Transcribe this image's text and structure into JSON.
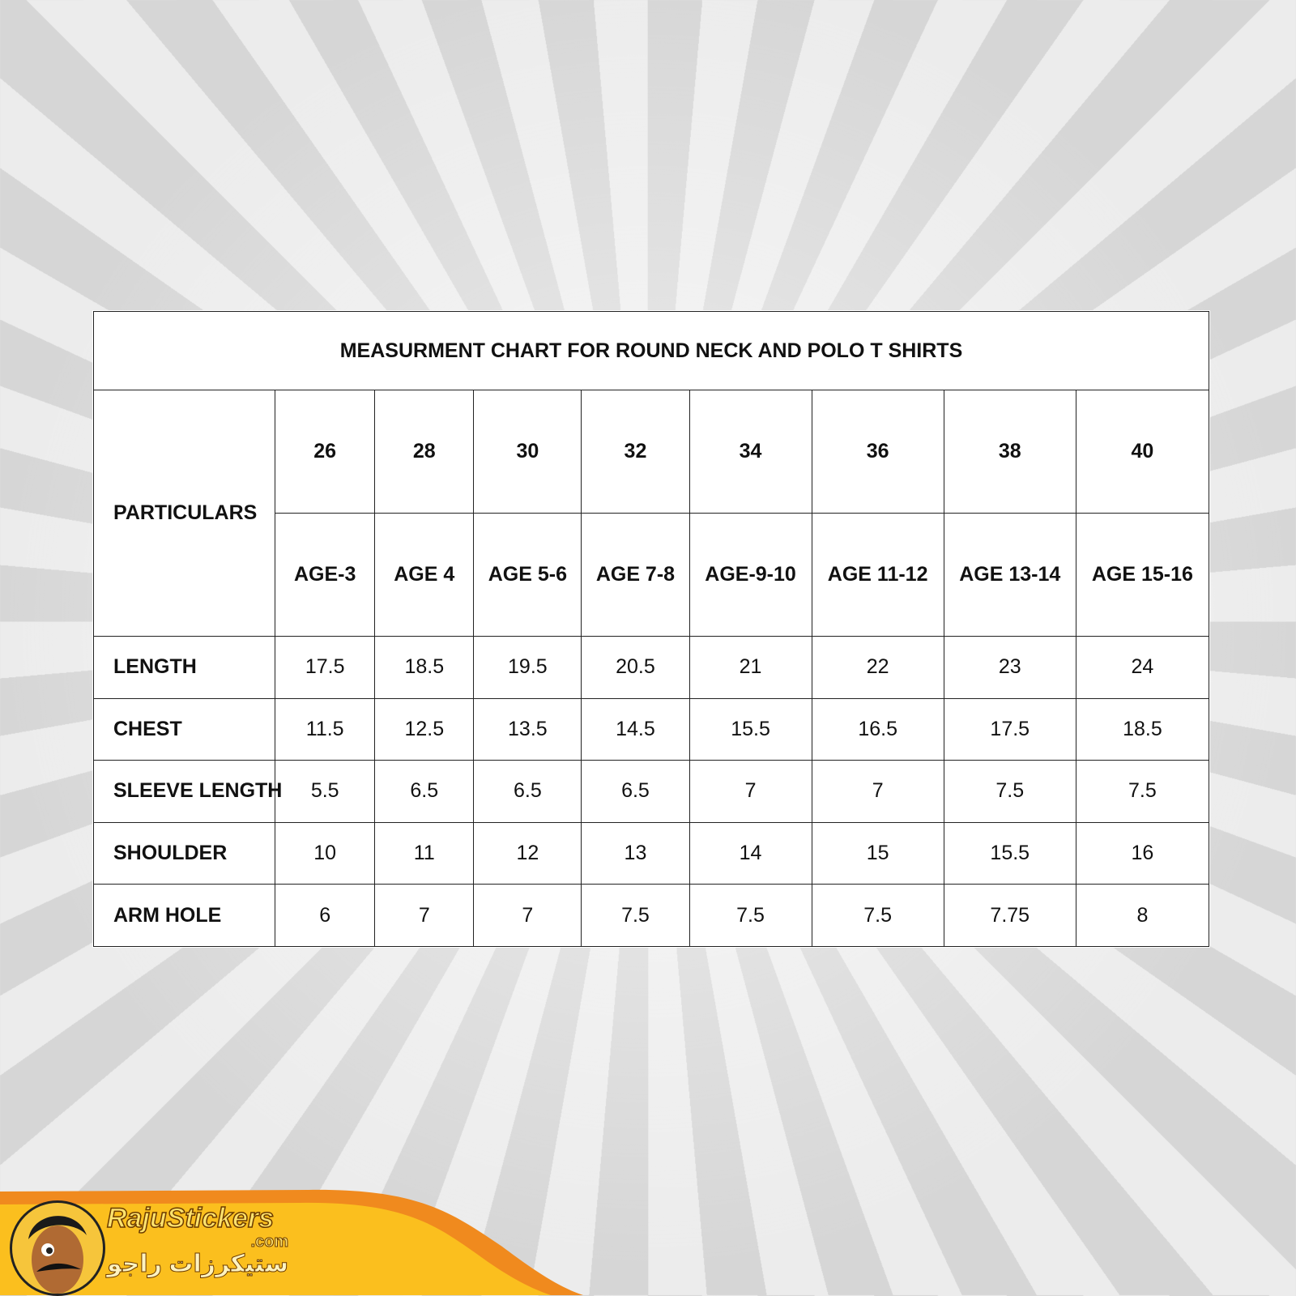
{
  "title": "MEASURMENT CHART FOR ROUND NECK AND POLO T SHIRTS",
  "particulars_label": "PARTICULARS",
  "sizes": [
    "26",
    "28",
    "30",
    "32",
    "34",
    "36",
    "38",
    "40"
  ],
  "ages": [
    "AGE-3",
    "AGE 4",
    "AGE 5-6",
    "AGE 7-8",
    "AGE-9-10",
    "AGE 11-12",
    "AGE 13-14",
    "AGE 15-16"
  ],
  "rows": [
    {
      "label": "LENGTH",
      "values": [
        "17.5",
        "18.5",
        "19.5",
        "20.5",
        "21",
        "22",
        "23",
        "24"
      ]
    },
    {
      "label": "CHEST",
      "values": [
        "11.5",
        "12.5",
        "13.5",
        "14.5",
        "15.5",
        "16.5",
        "17.5",
        "18.5"
      ]
    },
    {
      "label": "SLEEVE LENGTH",
      "values": [
        "5.5",
        "6.5",
        "6.5",
        "6.5",
        "7",
        "7",
        "7.5",
        "7.5"
      ]
    },
    {
      "label": "SHOULDER",
      "values": [
        "10",
        "11",
        "12",
        "13",
        "14",
        "15",
        "15.5",
        "16"
      ]
    },
    {
      "label": "ARM HOLE",
      "values": [
        "6",
        "7",
        "7",
        "7.5",
        "7.5",
        "7.5",
        "7.75",
        "8"
      ]
    }
  ],
  "branding": {
    "name": "RajuStickers",
    "domain": ".com",
    "arabic": "ستيكرزات راجو",
    "banner_color": "#fbbf1e",
    "accent_color": "#f08a1e"
  }
}
